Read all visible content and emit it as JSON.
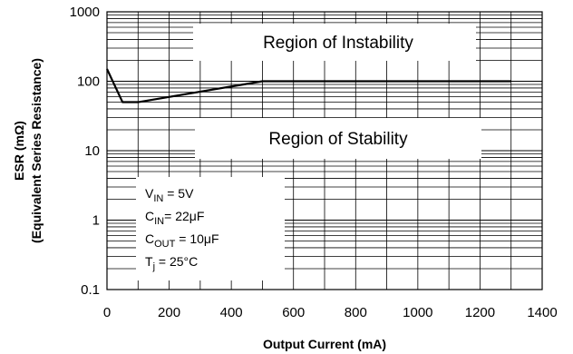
{
  "chart_data": {
    "type": "line",
    "xlabel": "Output Current (mA)",
    "ylabel_lines": [
      "ESR (mΩ)",
      "(Equivalent Series Resistance)"
    ],
    "xlim": [
      0,
      1400
    ],
    "ylim": [
      0.1,
      1000
    ],
    "y_scale": "log",
    "x_ticks": [
      "0",
      "200",
      "400",
      "600",
      "800",
      "1000",
      "1200",
      "1400"
    ],
    "y_ticks": [
      "0.1",
      "1",
      "10",
      "100",
      "1000"
    ],
    "grid": true,
    "series": [
      {
        "x": [
          0,
          50,
          100,
          500,
          1300
        ],
        "y": [
          150,
          50,
          50,
          100,
          100
        ]
      }
    ],
    "annotations": {
      "instability": "Region of Instability",
      "stability": "Region of Stability"
    },
    "conditions": [
      {
        "main": "V",
        "sub": "IN",
        "rest": " = 5V"
      },
      {
        "main": "C",
        "sub": "IN",
        "rest": "= 22μF"
      },
      {
        "main": "C",
        "sub": "OUT",
        "rest": " = 10μF"
      },
      {
        "main": "T",
        "sub": "j",
        "rest": " = 25°C"
      }
    ]
  }
}
